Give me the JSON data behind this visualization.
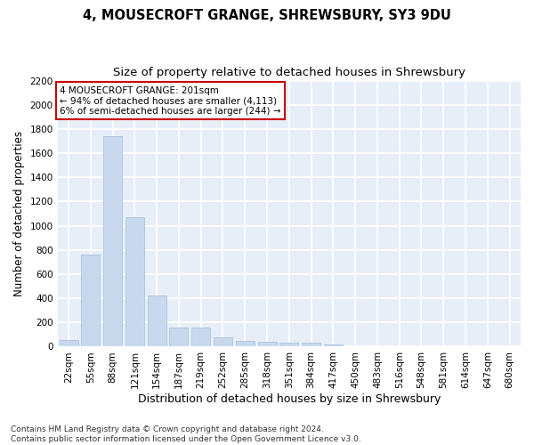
{
  "title1": "4, MOUSECROFT GRANGE, SHREWSBURY, SY3 9DU",
  "title2": "Size of property relative to detached houses in Shrewsbury",
  "xlabel": "Distribution of detached houses by size in Shrewsbury",
  "ylabel": "Number of detached properties",
  "bins": [
    "22sqm",
    "55sqm",
    "88sqm",
    "121sqm",
    "154sqm",
    "187sqm",
    "219sqm",
    "252sqm",
    "285sqm",
    "318sqm",
    "351sqm",
    "384sqm",
    "417sqm",
    "450sqm",
    "483sqm",
    "516sqm",
    "548sqm",
    "581sqm",
    "614sqm",
    "647sqm",
    "680sqm"
  ],
  "values": [
    55,
    760,
    1740,
    1070,
    420,
    155,
    155,
    80,
    45,
    40,
    30,
    30,
    15,
    0,
    0,
    0,
    0,
    0,
    0,
    0,
    0
  ],
  "bar_color": "#c8d9ee",
  "bar_edge_color": "#a0bdd8",
  "annotation_text": "4 MOUSECROFT GRANGE: 201sqm\n← 94% of detached houses are smaller (4,113)\n6% of semi-detached houses are larger (244) →",
  "annotation_box_color": "#ffffff",
  "annotation_box_edge_color": "#cc0000",
  "ylim": [
    0,
    2200
  ],
  "yticks": [
    0,
    200,
    400,
    600,
    800,
    1000,
    1200,
    1400,
    1600,
    1800,
    2000,
    2200
  ],
  "background_color": "#e8eef8",
  "grid_color": "#ffffff",
  "footnote": "Contains HM Land Registry data © Crown copyright and database right 2024.\nContains public sector information licensed under the Open Government Licence v3.0.",
  "title1_fontsize": 10.5,
  "title2_fontsize": 9.5,
  "xlabel_fontsize": 9,
  "ylabel_fontsize": 8.5,
  "tick_fontsize": 7.5,
  "annotation_fontsize": 7.5,
  "footnote_fontsize": 6.5
}
